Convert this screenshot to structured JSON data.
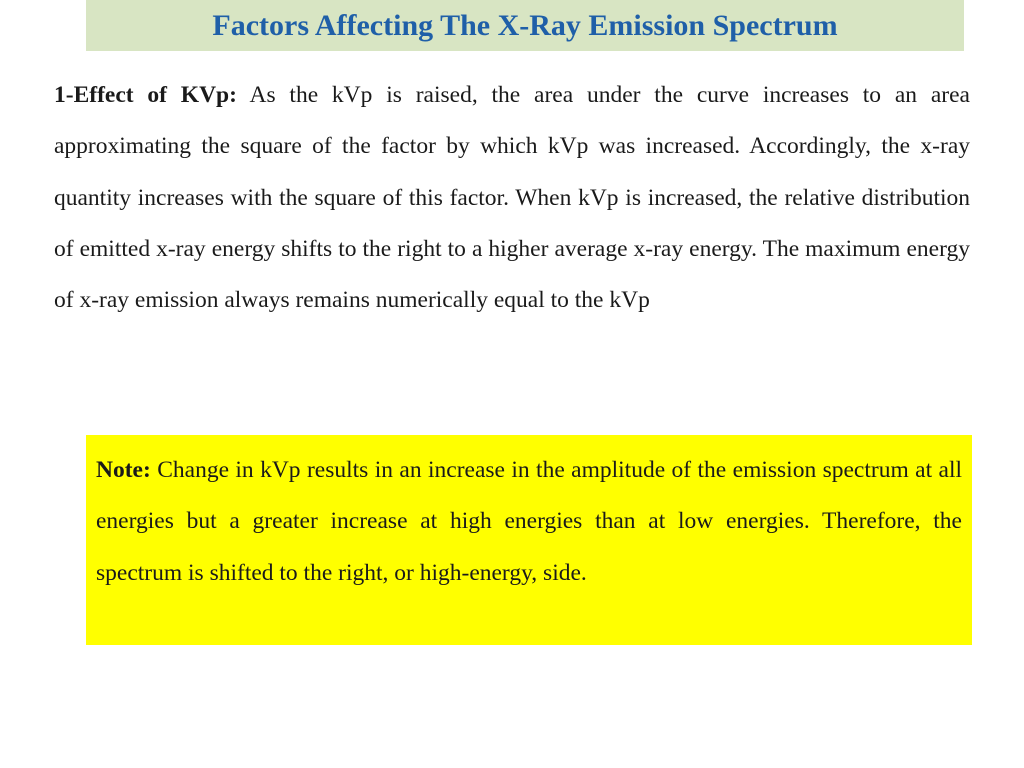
{
  "title": "Factors Affecting The X-Ray Emission Spectrum",
  "section": {
    "heading": "1-Effect of KVp:",
    "body": " As the kVp is raised, the area under the curve increases to an area approximating the square of the factor by which kVp was increased. Accordingly, the x-ray quantity increases with the square of this factor. When kVp is increased, the relative distribution of emitted x-ray energy shifts to the right to a higher average x-ray energy. The maximum energy of x-ray emission always remains numerically equal to the kVp"
  },
  "note": {
    "heading": "Note:",
    "body": " Change in kVp results in an increase in the amplitude of the emission spectrum at all energies but a greater increase at high energies than at low energies. Therefore, the spectrum is shifted to the right, or high-energy, side."
  },
  "colors": {
    "title_bar_bg": "#d8e5c3",
    "title_text": "#1f5fa8",
    "note_bg": "#ffff00"
  }
}
